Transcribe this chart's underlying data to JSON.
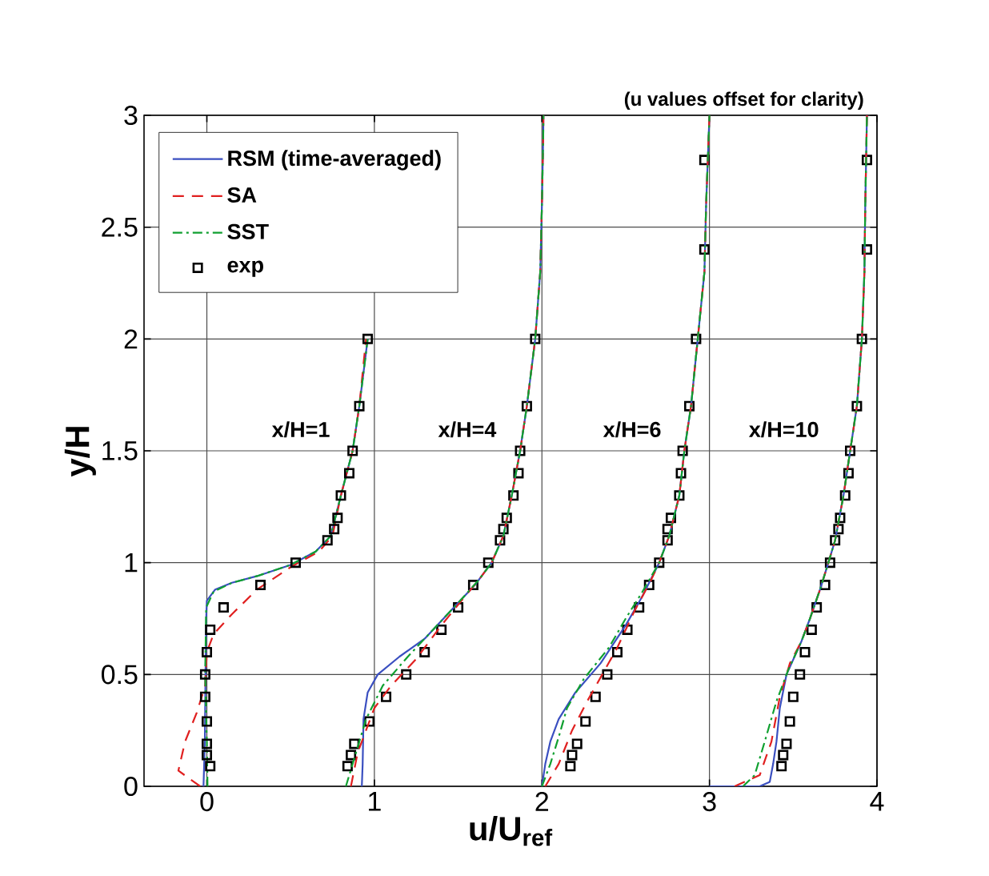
{
  "chart_data": {
    "type": "line",
    "xlabel": "u/U$_{ref}$",
    "ylabel": "y/H",
    "xlim": [
      -0.375,
      4
    ],
    "ylim": [
      0,
      3
    ],
    "xticks": [
      0,
      1,
      2,
      3,
      4
    ],
    "yticks": [
      0,
      0.5,
      1,
      1.5,
      2,
      2.5,
      3
    ],
    "grid": true,
    "legend": "top left",
    "annotations": [
      "(u values offset for clarity)",
      "x/H=1",
      "x/H=4",
      "x/H=6",
      "x/H=10"
    ],
    "series": [
      {
        "name": "RSM (time-averaged)",
        "color": "#3a4fc0",
        "line_style": "solid",
        "marker": "none",
        "x": [
          -0.02,
          -0.012,
          -0.008,
          -0.004,
          0.0,
          0.05,
          0.15,
          0.3,
          0.5,
          0.65,
          0.74,
          0.8,
          0.87,
          0.91,
          0.96
        ],
        "values": [
          0,
          0.2,
          0.5,
          0.75,
          0.83,
          0.88,
          0.91,
          0.94,
          0.99,
          1.05,
          1.12,
          1.3,
          1.5,
          1.7,
          2.0
        ]
      },
      {
        "name": "SA",
        "color": "#e02020",
        "line_style": "dashed",
        "marker": "none",
        "x": [
          -0.04,
          -0.17,
          -0.13,
          -0.06,
          -0.01,
          0.0,
          0.04,
          0.15,
          0.3,
          0.5,
          0.67,
          0.75,
          0.8,
          0.87,
          0.91,
          0.95
        ],
        "values": [
          0,
          0.07,
          0.2,
          0.33,
          0.45,
          0.6,
          0.68,
          0.77,
          0.88,
          0.98,
          1.05,
          1.12,
          1.3,
          1.5,
          1.7,
          2.0
        ]
      },
      {
        "name": "SST",
        "color": "#10a030",
        "line_style": "dashdot",
        "marker": "none",
        "x": [
          0.004,
          0.0,
          -0.01,
          -0.004,
          0.04,
          0.15,
          0.3,
          0.5,
          0.65,
          0.74,
          0.8,
          0.87,
          0.91,
          0.96
        ],
        "values": [
          0,
          0.2,
          0.5,
          0.8,
          0.87,
          0.91,
          0.94,
          0.99,
          1.05,
          1.12,
          1.3,
          1.5,
          1.7,
          2.0
        ]
      },
      {
        "name": "exp",
        "type": "scatter",
        "color": "#000000",
        "marker": "square",
        "x": [
          0.02,
          0.0,
          0.0,
          0.0,
          -0.01,
          -0.01,
          0.0,
          0.02,
          0.1,
          0.32,
          0.53,
          0.72,
          0.76,
          0.78,
          0.8,
          0.85,
          0.87,
          0.91,
          0.96,
          0.84,
          0.86,
          0.88,
          0.97,
          1.07,
          1.19,
          1.3,
          1.4,
          1.5,
          1.59,
          1.68,
          1.75,
          1.77,
          1.79,
          1.83,
          1.86,
          1.87,
          1.91,
          1.96,
          2.17,
          2.18,
          2.21,
          2.26,
          2.32,
          2.39,
          2.45,
          2.51,
          2.58,
          2.64,
          2.7,
          2.75,
          2.75,
          2.77,
          2.82,
          2.83,
          2.84,
          2.88,
          2.92,
          2.97,
          2.97,
          3.43,
          3.44,
          3.46,
          3.48,
          3.5,
          3.54,
          3.57,
          3.61,
          3.64,
          3.69,
          3.72,
          3.75,
          3.77,
          3.78,
          3.81,
          3.83,
          3.84,
          3.88,
          3.91,
          3.94,
          3.94
        ],
        "values": [
          0.09,
          0.14,
          0.19,
          0.29,
          0.4,
          0.5,
          0.6,
          0.7,
          0.8,
          0.9,
          1.0,
          1.1,
          1.15,
          1.2,
          1.3,
          1.4,
          1.5,
          1.7,
          2.0,
          0.09,
          0.14,
          0.19,
          0.29,
          0.4,
          0.5,
          0.6,
          0.7,
          0.8,
          0.9,
          1.0,
          1.1,
          1.15,
          1.2,
          1.3,
          1.4,
          1.5,
          1.7,
          2.0,
          0.09,
          0.14,
          0.19,
          0.29,
          0.4,
          0.5,
          0.6,
          0.7,
          0.8,
          0.9,
          1.0,
          1.1,
          1.15,
          1.2,
          1.3,
          1.4,
          1.5,
          1.7,
          2.0,
          2.4,
          2.8,
          0.09,
          0.14,
          0.19,
          0.29,
          0.4,
          0.5,
          0.6,
          0.7,
          0.8,
          0.9,
          1.0,
          1.1,
          1.15,
          1.2,
          1.3,
          1.4,
          1.5,
          1.7,
          2.0,
          2.4,
          2.8
        ]
      },
      {
        "color": "#3a4fc0",
        "line_style": "solid",
        "marker": "none",
        "x": [
          0.925,
          0.93,
          0.935,
          0.96,
          1.02,
          1.15,
          1.3,
          1.45,
          1.6,
          1.7,
          1.77,
          1.82,
          1.87,
          1.91,
          1.96,
          1.99,
          2.0,
          2.01
        ],
        "values": [
          0,
          0.1,
          0.3,
          0.42,
          0.5,
          0.58,
          0.66,
          0.78,
          0.9,
          1.0,
          1.12,
          1.3,
          1.5,
          1.7,
          2.0,
          2.3,
          2.6,
          3.0
        ]
      },
      {
        "color": "#e02020",
        "line_style": "dashed",
        "marker": "none",
        "x": [
          0.86,
          0.9,
          1.0,
          1.1,
          1.25,
          1.4,
          1.52,
          1.62,
          1.7,
          1.77,
          1.82,
          1.87,
          1.91,
          1.96,
          1.99,
          2.0,
          2.01
        ],
        "values": [
          0,
          0.15,
          0.35,
          0.45,
          0.57,
          0.72,
          0.83,
          0.92,
          1.0,
          1.12,
          1.3,
          1.5,
          1.7,
          2.0,
          2.3,
          2.6,
          3.0
        ]
      },
      {
        "color": "#10a030",
        "line_style": "dashdot",
        "marker": "none",
        "x": [
          0.83,
          0.87,
          0.95,
          1.05,
          1.2,
          1.35,
          1.5,
          1.62,
          1.7,
          1.77,
          1.82,
          1.87,
          1.91,
          1.96,
          1.99,
          2.0,
          2.01
        ],
        "values": [
          0,
          0.1,
          0.3,
          0.45,
          0.58,
          0.7,
          0.82,
          0.92,
          1.0,
          1.12,
          1.3,
          1.5,
          1.7,
          2.0,
          2.3,
          2.6,
          3.0
        ]
      },
      {
        "color": "#3a4fc0",
        "line_style": "solid",
        "marker": "none",
        "x": [
          2.0,
          2.02,
          2.05,
          2.1,
          2.2,
          2.35,
          2.5,
          2.6,
          2.7,
          2.76,
          2.82,
          2.85,
          2.89,
          2.93,
          2.97,
          2.98,
          3.0
        ],
        "values": [
          0,
          0.1,
          0.2,
          0.3,
          0.42,
          0.55,
          0.72,
          0.85,
          1.0,
          1.12,
          1.3,
          1.5,
          1.7,
          2.0,
          2.3,
          2.6,
          3.0
        ]
      },
      {
        "color": "#e02020",
        "line_style": "dashed",
        "marker": "none",
        "x": [
          2.02,
          2.1,
          2.18,
          2.27,
          2.36,
          2.45,
          2.55,
          2.65,
          2.7,
          2.76,
          2.82,
          2.85,
          2.89,
          2.93,
          2.97,
          2.98,
          3.0
        ],
        "values": [
          0,
          0.1,
          0.25,
          0.38,
          0.5,
          0.62,
          0.78,
          0.92,
          1.0,
          1.12,
          1.3,
          1.5,
          1.7,
          2.0,
          2.3,
          2.6,
          3.0
        ]
      },
      {
        "color": "#10a030",
        "line_style": "dashdot",
        "marker": "none",
        "x": [
          2.0,
          2.05,
          2.1,
          2.15,
          2.25,
          2.4,
          2.5,
          2.6,
          2.7,
          2.76,
          2.82,
          2.85,
          2.89,
          2.93,
          2.97,
          2.98,
          3.0
        ],
        "values": [
          0,
          0.1,
          0.22,
          0.35,
          0.48,
          0.62,
          0.75,
          0.87,
          1.0,
          1.12,
          1.3,
          1.5,
          1.7,
          2.0,
          2.3,
          2.6,
          3.0
        ]
      },
      {
        "color": "#3a4fc0",
        "line_style": "solid",
        "marker": "none",
        "x": [
          3.0,
          3.3,
          3.36,
          3.38,
          3.4,
          3.42,
          3.46,
          3.55,
          3.6,
          3.66,
          3.71,
          3.75,
          3.8,
          3.84,
          3.88,
          3.91,
          3.925,
          3.93,
          3.94
        ],
        "values": [
          0,
          0,
          0.02,
          0.1,
          0.2,
          0.35,
          0.5,
          0.65,
          0.75,
          0.88,
          1.0,
          1.1,
          1.3,
          1.5,
          1.7,
          2.0,
          2.3,
          2.6,
          3.0
        ]
      },
      {
        "color": "#e02020",
        "line_style": "dashed",
        "marker": "none",
        "x": [
          3.15,
          3.3,
          3.37,
          3.42,
          3.48,
          3.55,
          3.6,
          3.66,
          3.71,
          3.75,
          3.8,
          3.84,
          3.88,
          3.91,
          3.925,
          3.93,
          3.94
        ],
        "values": [
          0,
          0.05,
          0.2,
          0.4,
          0.55,
          0.65,
          0.75,
          0.88,
          1.0,
          1.1,
          1.3,
          1.5,
          1.7,
          2.0,
          2.3,
          2.6,
          3.0
        ]
      },
      {
        "color": "#10a030",
        "line_style": "dashdot",
        "marker": "none",
        "x": [
          3.2,
          3.27,
          3.33,
          3.4,
          3.47,
          3.55,
          3.6,
          3.66,
          3.71,
          3.75,
          3.8,
          3.84,
          3.88,
          3.91,
          3.925,
          3.93,
          3.94
        ],
        "values": [
          0,
          0.05,
          0.2,
          0.38,
          0.52,
          0.65,
          0.75,
          0.88,
          1.0,
          1.1,
          1.3,
          1.5,
          1.7,
          2.0,
          2.3,
          2.6,
          3.0
        ]
      }
    ]
  }
}
